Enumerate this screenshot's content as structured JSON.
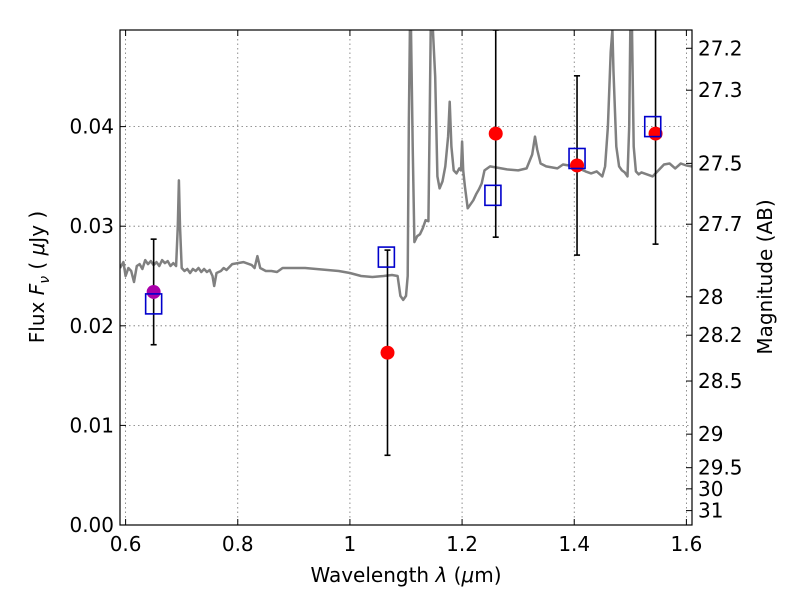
{
  "chart_data": {
    "type": "scatter",
    "title": "",
    "xlabel": "Wavelength  λ (μm)",
    "ylabel": "Flux  F_ν  ( μJy )",
    "ylabel_parts": {
      "prefix": "Flux  ",
      "symbol": "F",
      "subscript": "ν",
      "open": "  ( ",
      "mu": "μ",
      "unit": "Jy )"
    },
    "xlabel_parts": {
      "prefix": "Wavelength  ",
      "lambda": "λ",
      "open": " (",
      "mu": "μ",
      "unit": "m)"
    },
    "y2label": "Magnitude (AB)",
    "xlim": [
      0.59,
      1.61
    ],
    "ylim": [
      0.0,
      0.0497
    ],
    "grid": true,
    "x_ticks": [
      0.6,
      0.8,
      1.0,
      1.2,
      1.4,
      1.6
    ],
    "x_tick_labels": [
      "0.6",
      "0.8",
      "1",
      "1.2",
      "1.4",
      "1.6"
    ],
    "y_ticks": [
      0.0,
      0.01,
      0.02,
      0.03,
      0.04
    ],
    "y_tick_labels": [
      "0.00",
      "0.01",
      "0.02",
      "0.03",
      "0.04"
    ],
    "mag_ticks": [
      27.2,
      27.3,
      27.5,
      27.7,
      28,
      28.2,
      28.5,
      29,
      29.5,
      30,
      31
    ],
    "mag_tick_labels": [
      "27.2",
      "27.3",
      "27.5",
      "27.7",
      "28",
      "28.2",
      "28.5",
      "29",
      "29.5",
      "30",
      "31"
    ],
    "colors": {
      "spectrum": "#808080",
      "model": "#0000cc",
      "observed": "#ff0000",
      "highlight": "#aa00aa",
      "errorbar": "#000000"
    },
    "spectrum": {
      "name": "",
      "points": [
        [
          0.59,
          0.0258
        ],
        [
          0.596,
          0.0264
        ],
        [
          0.6,
          0.025
        ],
        [
          0.605,
          0.0258
        ],
        [
          0.61,
          0.0255
        ],
        [
          0.615,
          0.0244
        ],
        [
          0.62,
          0.026
        ],
        [
          0.625,
          0.0262
        ],
        [
          0.63,
          0.0257
        ],
        [
          0.635,
          0.0266
        ],
        [
          0.64,
          0.0262
        ],
        [
          0.645,
          0.0265
        ],
        [
          0.65,
          0.0261
        ],
        [
          0.655,
          0.0264
        ],
        [
          0.66,
          0.026
        ],
        [
          0.665,
          0.0266
        ],
        [
          0.67,
          0.0263
        ],
        [
          0.675,
          0.0265
        ],
        [
          0.68,
          0.026
        ],
        [
          0.685,
          0.0263
        ],
        [
          0.69,
          0.026
        ],
        [
          0.693,
          0.03
        ],
        [
          0.695,
          0.0346
        ],
        [
          0.697,
          0.03
        ],
        [
          0.7,
          0.0258
        ],
        [
          0.705,
          0.0255
        ],
        [
          0.71,
          0.0257
        ],
        [
          0.715,
          0.0253
        ],
        [
          0.72,
          0.0257
        ],
        [
          0.725,
          0.0255
        ],
        [
          0.73,
          0.0258
        ],
        [
          0.735,
          0.0254
        ],
        [
          0.74,
          0.0257
        ],
        [
          0.745,
          0.0254
        ],
        [
          0.75,
          0.0256
        ],
        [
          0.755,
          0.025
        ],
        [
          0.758,
          0.024
        ],
        [
          0.762,
          0.0253
        ],
        [
          0.77,
          0.0255
        ],
        [
          0.775,
          0.0258
        ],
        [
          0.78,
          0.0256
        ],
        [
          0.79,
          0.0262
        ],
        [
          0.8,
          0.0263
        ],
        [
          0.81,
          0.0264
        ],
        [
          0.82,
          0.0262
        ],
        [
          0.825,
          0.0261
        ],
        [
          0.83,
          0.0258
        ],
        [
          0.835,
          0.027
        ],
        [
          0.84,
          0.0258
        ],
        [
          0.85,
          0.0255
        ],
        [
          0.86,
          0.0255
        ],
        [
          0.87,
          0.0254
        ],
        [
          0.88,
          0.0258
        ],
        [
          0.9,
          0.0258
        ],
        [
          0.92,
          0.0258
        ],
        [
          0.94,
          0.0257
        ],
        [
          0.96,
          0.0256
        ],
        [
          0.98,
          0.0255
        ],
        [
          1.0,
          0.0253
        ],
        [
          1.02,
          0.025
        ],
        [
          1.04,
          0.0249
        ],
        [
          1.06,
          0.025
        ],
        [
          1.075,
          0.0251
        ],
        [
          1.085,
          0.025
        ],
        [
          1.09,
          0.023
        ],
        [
          1.095,
          0.0226
        ],
        [
          1.1,
          0.023
        ],
        [
          1.103,
          0.025
        ],
        [
          1.105,
          0.04
        ],
        [
          1.107,
          0.0497
        ],
        [
          1.109,
          0.0497
        ],
        [
          1.112,
          0.038
        ],
        [
          1.115,
          0.0284
        ],
        [
          1.12,
          0.029
        ],
        [
          1.125,
          0.0292
        ],
        [
          1.13,
          0.0298
        ],
        [
          1.135,
          0.0306
        ],
        [
          1.14,
          0.0305
        ],
        [
          1.142,
          0.04
        ],
        [
          1.144,
          0.0497
        ],
        [
          1.148,
          0.0497
        ],
        [
          1.152,
          0.045
        ],
        [
          1.156,
          0.035
        ],
        [
          1.16,
          0.0338
        ],
        [
          1.165,
          0.0345
        ],
        [
          1.17,
          0.036
        ],
        [
          1.175,
          0.039
        ],
        [
          1.178,
          0.0425
        ],
        [
          1.181,
          0.038
        ],
        [
          1.185,
          0.0356
        ],
        [
          1.19,
          0.0353
        ],
        [
          1.195,
          0.0358
        ],
        [
          1.198,
          0.0356
        ],
        [
          1.2,
          0.0385
        ],
        [
          1.202,
          0.0356
        ],
        [
          1.205,
          0.034
        ],
        [
          1.21,
          0.0318
        ],
        [
          1.215,
          0.0322
        ],
        [
          1.22,
          0.0326
        ],
        [
          1.225,
          0.0332
        ],
        [
          1.23,
          0.0337
        ],
        [
          1.235,
          0.0343
        ],
        [
          1.24,
          0.0356
        ],
        [
          1.25,
          0.036
        ],
        [
          1.26,
          0.0359
        ],
        [
          1.28,
          0.0357
        ],
        [
          1.3,
          0.0356
        ],
        [
          1.315,
          0.0358
        ],
        [
          1.325,
          0.0372
        ],
        [
          1.33,
          0.039
        ],
        [
          1.334,
          0.0377
        ],
        [
          1.34,
          0.0363
        ],
        [
          1.35,
          0.036
        ],
        [
          1.37,
          0.0358
        ],
        [
          1.38,
          0.0362
        ],
        [
          1.4,
          0.036
        ],
        [
          1.42,
          0.0355
        ],
        [
          1.43,
          0.0353
        ],
        [
          1.44,
          0.0355
        ],
        [
          1.45,
          0.035
        ],
        [
          1.455,
          0.036
        ],
        [
          1.46,
          0.04
        ],
        [
          1.465,
          0.0475
        ],
        [
          1.468,
          0.0497
        ],
        [
          1.47,
          0.0455
        ],
        [
          1.475,
          0.038
        ],
        [
          1.48,
          0.036
        ],
        [
          1.485,
          0.0356
        ],
        [
          1.49,
          0.0354
        ],
        [
          1.495,
          0.035
        ],
        [
          1.498,
          0.04
        ],
        [
          1.5,
          0.0497
        ],
        [
          1.503,
          0.0497
        ],
        [
          1.506,
          0.038
        ],
        [
          1.51,
          0.0355
        ],
        [
          1.515,
          0.0352
        ],
        [
          1.52,
          0.0354
        ],
        [
          1.53,
          0.0352
        ],
        [
          1.54,
          0.035
        ],
        [
          1.55,
          0.0356
        ],
        [
          1.56,
          0.0362
        ],
        [
          1.57,
          0.0363
        ],
        [
          1.58,
          0.0358
        ],
        [
          1.59,
          0.0363
        ],
        [
          1.6,
          0.0361
        ],
        [
          1.61,
          0.036
        ]
      ]
    },
    "model_photometry": {
      "name": "",
      "marker": "open-square",
      "points": [
        {
          "x": 0.65,
          "y": 0.0222
        },
        {
          "x": 1.065,
          "y": 0.0269
        },
        {
          "x": 1.255,
          "y": 0.0331
        },
        {
          "x": 1.405,
          "y": 0.0368
        },
        {
          "x": 1.54,
          "y": 0.04
        }
      ]
    },
    "observed_photometry": {
      "name": "",
      "marker": "filled-circle",
      "points": [
        {
          "x": 0.65,
          "y": 0.0234,
          "yerr_low": 0.0053,
          "yerr_high": 0.0053,
          "color": "highlight"
        },
        {
          "x": 1.067,
          "y": 0.0173,
          "yerr_low": 0.0103,
          "yerr_high": 0.0103,
          "color": "observed"
        },
        {
          "x": 1.26,
          "y": 0.0393,
          "yerr_low": 0.0104,
          "yerr_high": 0.0104,
          "color": "observed"
        },
        {
          "x": 1.405,
          "y": 0.0361,
          "yerr_low": 0.009,
          "yerr_high": 0.009,
          "color": "observed"
        },
        {
          "x": 1.545,
          "y": 0.0393,
          "yerr_low": 0.0111,
          "yerr_high": 0.0111,
          "color": "observed"
        }
      ]
    }
  }
}
